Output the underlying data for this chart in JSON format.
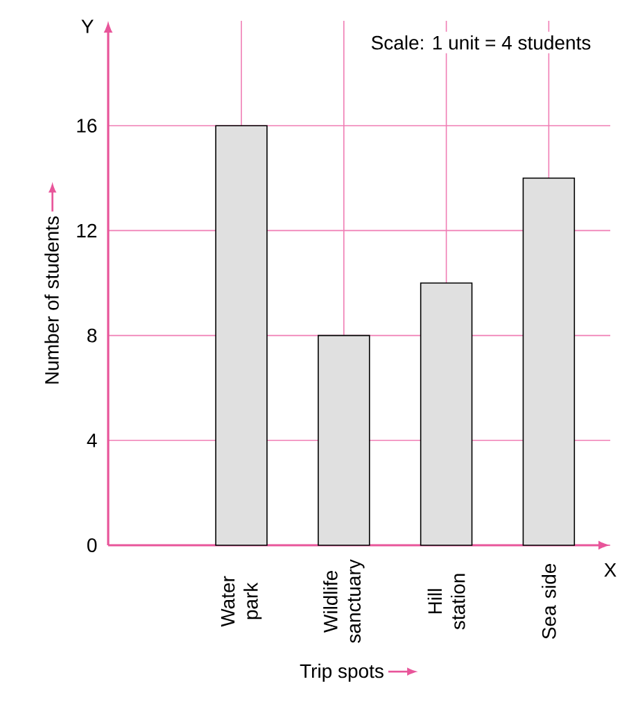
{
  "chart_data": {
    "type": "bar",
    "categories": [
      "Water park",
      "Wildlife sanctuary",
      "Hill station",
      "Sea side"
    ],
    "values": [
      16,
      8,
      10,
      14
    ],
    "color": "#e0e0e0",
    "xlabel": "Trip spots",
    "ylabel": "Number of students",
    "ylim": [
      0,
      20
    ],
    "yticks": [
      0,
      4,
      8,
      12,
      16
    ],
    "grid": true,
    "annotations": [
      "Scale: 1 unit = 4 students",
      "Y",
      "X"
    ]
  }
}
